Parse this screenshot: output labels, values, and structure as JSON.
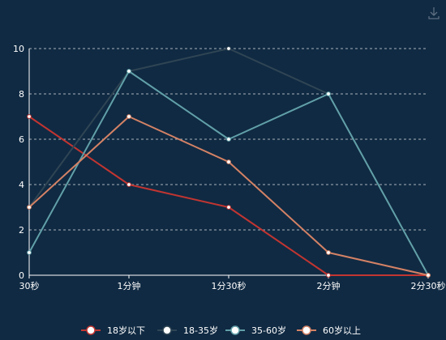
{
  "toolbar": {
    "download_icon": "download-icon"
  },
  "chart_data": {
    "type": "line",
    "title": "",
    "xlabel": "",
    "ylabel": "",
    "categories": [
      "30秒",
      "1分钟",
      "1分30秒",
      "2分钟",
      "2分30秒"
    ],
    "ylim": [
      0,
      10
    ],
    "yticks": [
      0,
      2,
      4,
      6,
      8,
      10
    ],
    "grid": true,
    "legend_position": "bottom",
    "series": [
      {
        "name": "18岁以下",
        "color": "#c23531",
        "values": [
          7,
          4,
          3,
          0,
          0
        ]
      },
      {
        "name": "18-35岁",
        "color": "#2f4554",
        "values": [
          3,
          9,
          10,
          8,
          0
        ]
      },
      {
        "name": "35-60岁",
        "color": "#61a0a8",
        "values": [
          1,
          9,
          6,
          8,
          0
        ]
      },
      {
        "name": "60岁以上",
        "color": "#d48265",
        "values": [
          3,
          7,
          5,
          1,
          0
        ]
      }
    ]
  }
}
